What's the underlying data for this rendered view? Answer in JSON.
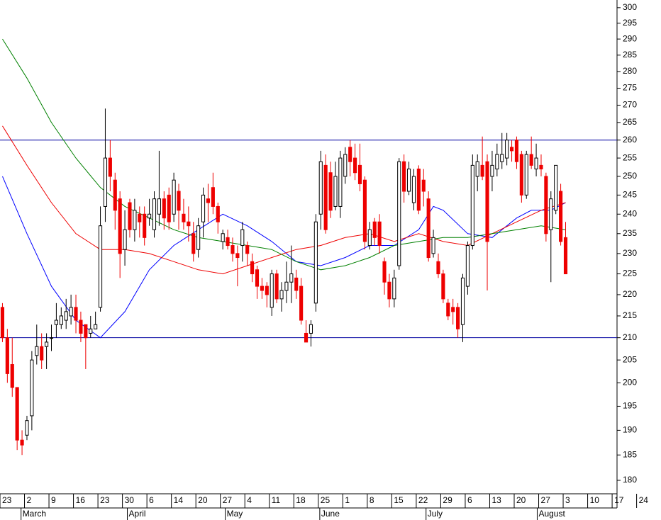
{
  "chart_data": {
    "type": "candlestick",
    "log_scale": true,
    "up_color": "#ffffff",
    "down_color": "#ee0000",
    "wick_color": "#000000",
    "open": [
      217,
      210,
      204,
      199,
      188,
      189,
      193,
      206,
      208,
      208,
      210,
      213,
      213,
      214,
      215,
      217,
      214,
      213,
      211,
      212,
      217,
      242,
      255,
      249,
      244,
      231,
      243,
      236,
      240,
      240,
      239,
      236,
      240,
      244,
      245,
      240,
      246,
      240,
      238,
      235,
      231,
      238,
      244,
      247,
      242,
      233,
      234,
      232,
      230,
      232,
      232,
      228,
      226,
      222,
      222,
      217,
      225,
      219,
      221,
      223,
      224,
      222,
      211,
      211,
      218,
      240,
      253,
      251,
      242,
      242,
      250,
      258,
      255,
      253,
      249,
      232,
      238,
      238,
      228,
      223,
      219,
      227,
      254,
      246,
      243,
      252,
      249,
      244,
      230,
      228,
      225,
      218,
      217,
      217,
      213,
      222,
      232,
      250,
      253,
      254,
      250,
      252,
      254,
      255,
      258,
      260,
      256,
      245,
      256,
      252,
      253,
      250,
      236,
      241,
      246,
      234
    ],
    "high": [
      218,
      212,
      210,
      199,
      190,
      193,
      207,
      213,
      211,
      211,
      213,
      218,
      217,
      219,
      220,
      220,
      216,
      213,
      215,
      216,
      242,
      269,
      260,
      251,
      246,
      241,
      244,
      244,
      242,
      242,
      244,
      246,
      257,
      246,
      247,
      251,
      248,
      244,
      242,
      238,
      239,
      247,
      248,
      251,
      243,
      236,
      236,
      234,
      232,
      238,
      233,
      230,
      227,
      224,
      223,
      226,
      226,
      223,
      228,
      232,
      226,
      224,
      214,
      214,
      240,
      257,
      256,
      254,
      254,
      257,
      258,
      260,
      259,
      259,
      250,
      238,
      239,
      240,
      229,
      225,
      226,
      255,
      256,
      254,
      252,
      253,
      252,
      246,
      236,
      230,
      226,
      219,
      219,
      218,
      225,
      233,
      256,
      256,
      261,
      256,
      257,
      259,
      262,
      262,
      260,
      261,
      257,
      257,
      261,
      259,
      256,
      251,
      246,
      253,
      248,
      238
    ],
    "low": [
      209,
      200,
      197,
      186,
      185,
      188,
      190,
      204,
      203,
      203,
      207,
      210,
      212,
      212,
      213,
      211,
      209,
      203,
      210,
      212,
      216,
      238,
      246,
      236,
      224,
      227,
      234,
      233,
      234,
      232,
      237,
      234,
      237,
      236,
      236,
      238,
      236,
      236,
      233,
      228,
      229,
      234,
      238,
      240,
      235,
      231,
      231,
      228,
      222,
      228,
      227,
      223,
      219,
      219,
      217,
      215,
      218,
      216,
      218,
      218,
      219,
      213,
      209,
      208,
      216,
      236,
      235,
      239,
      241,
      239,
      248,
      250,
      249,
      246,
      231,
      231,
      232,
      230,
      220,
      217,
      217,
      226,
      243,
      245,
      241,
      240,
      242,
      228,
      229,
      224,
      218,
      214,
      213,
      210,
      209,
      220,
      231,
      246,
      249,
      221,
      246,
      250,
      252,
      253,
      254,
      252,
      243,
      244,
      252,
      250,
      250,
      233,
      223,
      240,
      232,
      225
    ],
    "close": [
      210,
      202,
      199,
      188,
      187,
      192,
      205,
      208,
      205,
      209,
      210,
      214,
      215,
      216,
      217,
      214,
      211,
      210,
      212,
      213,
      237,
      255,
      250,
      241,
      230,
      236,
      236,
      241,
      238,
      234,
      240,
      244,
      244,
      239,
      238,
      249,
      241,
      238,
      237,
      230,
      237,
      245,
      243,
      242,
      238,
      235,
      232,
      230,
      229,
      236,
      230,
      225,
      222,
      221,
      220,
      225,
      219,
      221,
      223,
      225,
      221,
      214,
      209,
      213,
      238,
      254,
      236,
      241,
      250,
      255,
      256,
      254,
      251,
      248,
      233,
      236,
      234,
      232,
      223,
      219,
      224,
      254,
      246,
      252,
      250,
      241,
      246,
      229,
      234,
      225,
      219,
      215,
      216,
      212,
      224,
      232,
      253,
      254,
      250,
      233,
      253,
      256,
      256,
      260,
      257,
      254,
      245,
      256,
      253,
      255,
      252,
      235,
      244,
      253,
      233,
      225
    ],
    "moving_averages": [
      {
        "color": "#0000ff",
        "x": [
          0,
          5,
          10,
          15,
          20,
          25,
          30,
          35,
          40,
          45,
          50,
          55,
          60,
          65,
          70,
          75,
          80,
          85,
          88,
          90,
          95,
          100,
          105,
          108,
          112,
          115
        ],
        "values": [
          250,
          235,
          222,
          214,
          210,
          216,
          226,
          232,
          236,
          240,
          237,
          233,
          228,
          227,
          229,
          232,
          232,
          236,
          242,
          241,
          235,
          234,
          239,
          241,
          241,
          243
        ]
      },
      {
        "color": "#ee0000",
        "x": [
          0,
          5,
          10,
          15,
          20,
          25,
          30,
          35,
          40,
          45,
          50,
          55,
          60,
          65,
          70,
          75,
          80,
          85,
          90,
          95,
          100,
          105,
          110,
          115
        ],
        "values": [
          264,
          253,
          243,
          235,
          231,
          231,
          230,
          228,
          226,
          225,
          227,
          229,
          231,
          232,
          234,
          235,
          233,
          235,
          233,
          232,
          235,
          238,
          241,
          243
        ]
      },
      {
        "color": "#008000",
        "x": [
          0,
          5,
          10,
          15,
          20,
          25,
          30,
          35,
          40,
          45,
          50,
          55,
          60,
          65,
          70,
          75,
          80,
          85,
          90,
          95,
          100,
          105,
          110,
          115
        ],
        "values": [
          290,
          278,
          265,
          255,
          247,
          242,
          239,
          236,
          234,
          233,
          232,
          231,
          228,
          226,
          227,
          229,
          232,
          233,
          234,
          234,
          235,
          236,
          237,
          236
        ]
      }
    ],
    "hlines": [
      260,
      210
    ],
    "hline_color": "#0000a0",
    "ylim": [
      177.4,
      302.5
    ],
    "yticks": [
      180,
      185,
      190,
      195,
      200,
      205,
      210,
      215,
      220,
      225,
      230,
      235,
      240,
      245,
      250,
      255,
      260,
      265,
      270,
      275,
      280,
      285,
      290,
      295,
      300
    ],
    "xlim": [
      -0.5,
      125.5
    ],
    "xticks": [
      {
        "value": -0.5,
        "label": "23"
      },
      {
        "value": 4.5,
        "label": "2"
      },
      {
        "value": 9.5,
        "label": "9"
      },
      {
        "value": 14.5,
        "label": "16"
      },
      {
        "value": 19.5,
        "label": "23"
      },
      {
        "value": 24.5,
        "label": "30"
      },
      {
        "value": 29.5,
        "label": "6"
      },
      {
        "value": 34.5,
        "label": "14"
      },
      {
        "value": 39.5,
        "label": "20"
      },
      {
        "value": 44.5,
        "label": "27"
      },
      {
        "value": 49.5,
        "label": "4"
      },
      {
        "value": 54.5,
        "label": "11"
      },
      {
        "value": 59.5,
        "label": "18"
      },
      {
        "value": 64.5,
        "label": "25"
      },
      {
        "value": 69.5,
        "label": "1"
      },
      {
        "value": 74.5,
        "label": "8"
      },
      {
        "value": 79.5,
        "label": "15"
      },
      {
        "value": 84.5,
        "label": "22"
      },
      {
        "value": 89.5,
        "label": "29"
      },
      {
        "value": 94.5,
        "label": "6"
      },
      {
        "value": 99.5,
        "label": "13"
      },
      {
        "value": 104.5,
        "label": "20"
      },
      {
        "value": 109.5,
        "label": "27"
      },
      {
        "value": 114.5,
        "label": "3"
      },
      {
        "value": 119.5,
        "label": "10"
      },
      {
        "value": 124.5,
        "label": "17"
      },
      {
        "value": 129.5,
        "label": "24"
      }
    ],
    "month_ticks": [
      {
        "value": 3.8,
        "label": "March"
      },
      {
        "value": 25.5,
        "label": "April"
      },
      {
        "value": 45.5,
        "label": "May"
      },
      {
        "value": 64.8,
        "label": "June"
      },
      {
        "value": 86.5,
        "label": "July"
      },
      {
        "value": 109.2,
        "label": "August"
      }
    ]
  }
}
